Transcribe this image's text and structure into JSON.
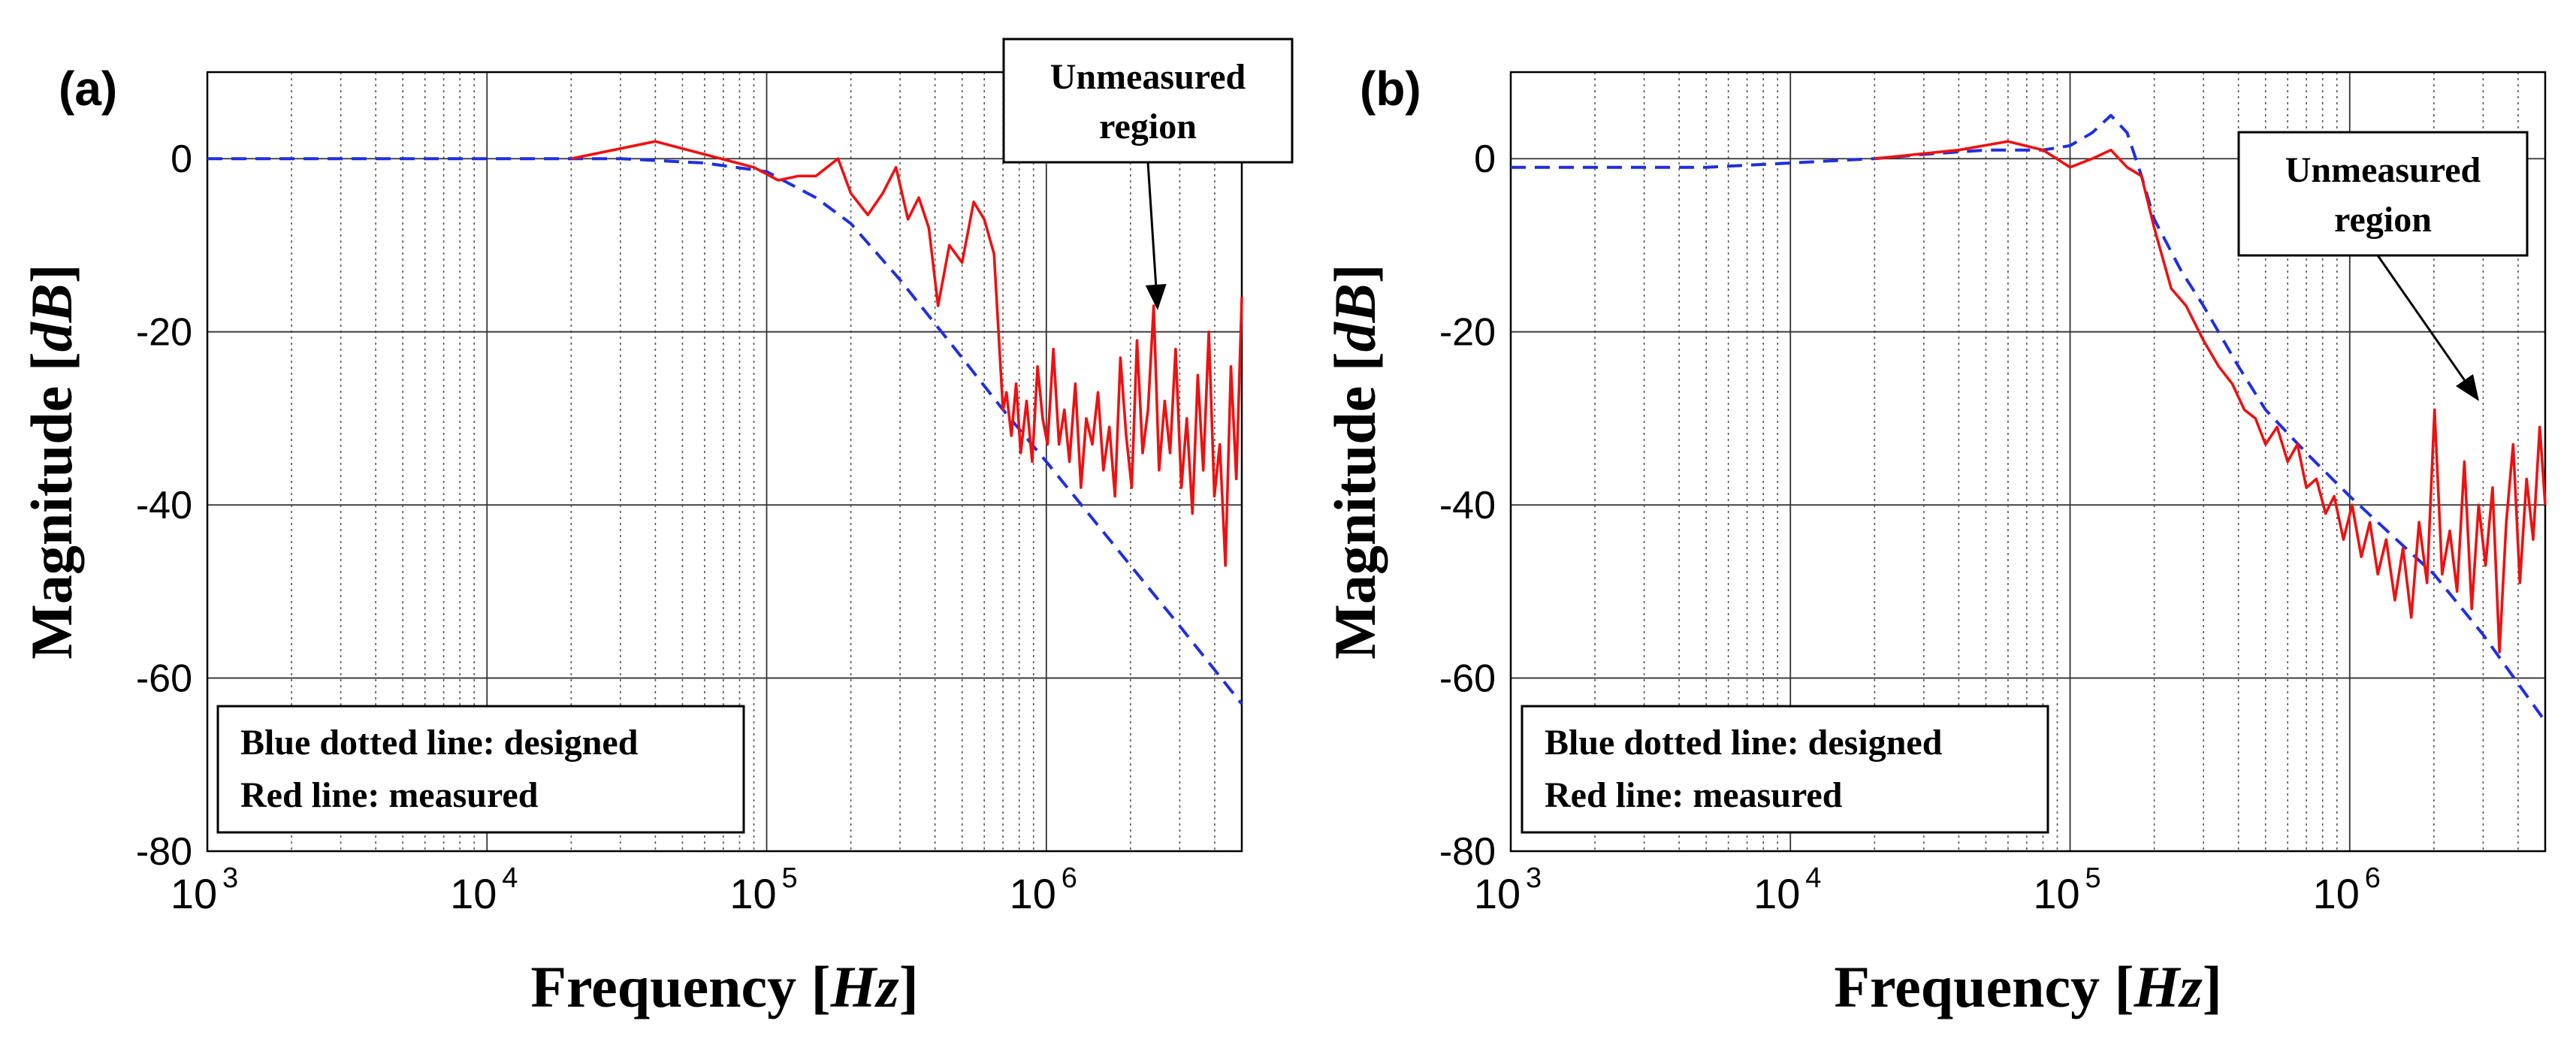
{
  "chart_data": [
    {
      "panel": "(a)",
      "type": "line",
      "xscale": "log",
      "xlim": [
        1000,
        5000000
      ],
      "ylim": [
        -80,
        10
      ],
      "yticks": [
        "0",
        "-20",
        "-40",
        "-60",
        "-80"
      ],
      "xticks": [
        {
          "base": "10",
          "exp": "3"
        },
        {
          "base": "10",
          "exp": "4"
        },
        {
          "base": "10",
          "exp": "5"
        },
        {
          "base": "10",
          "exp": "6"
        }
      ],
      "xlabel": "Frequency",
      "xunit": "Hz",
      "ylabel": "Magnitude",
      "yunit": "dB",
      "legend": [
        "Blue dotted line: designed",
        "Red line: measured"
      ],
      "annotation": [
        "Unmeasured",
        "region"
      ],
      "series": [
        {
          "name": "designed",
          "color": "#1f2fe0",
          "style": "dashed",
          "x": [
            1000,
            10000,
            30000,
            60000,
            100000,
            150000,
            200000,
            300000,
            500000,
            700000,
            1000000,
            2000000,
            3000000,
            5000000
          ],
          "y": [
            0,
            0,
            0,
            -0.5,
            -1.5,
            -4.5,
            -7.5,
            -14,
            -23,
            -29,
            -35,
            -47,
            -54,
            -63
          ]
        },
        {
          "name": "measured",
          "color": "#ee1111",
          "style": "solid",
          "x": [
            20000,
            40000,
            60000,
            90000,
            110000,
            130000,
            150000,
            180000,
            200000,
            230000,
            260000,
            290000,
            320000,
            350000,
            380000,
            410000,
            450000,
            500000,
            550000,
            600000,
            650000,
            700000,
            720000,
            750000,
            780000,
            810000,
            850000,
            890000,
            930000,
            970000,
            1010000,
            1060000,
            1110000,
            1160000,
            1210000,
            1270000,
            1330000,
            1390000,
            1460000,
            1530000,
            1600000,
            1680000,
            1760000,
            1840000,
            1930000,
            2020000,
            2110000,
            2210000,
            2310000,
            2420000,
            2530000,
            2650000,
            2770000,
            2900000,
            3040000,
            3180000,
            3330000,
            3480000,
            3640000,
            3810000,
            3990000,
            4170000,
            4370000,
            4570000,
            4780000,
            5000000
          ],
          "y": [
            0,
            2,
            0.5,
            -1,
            -2.5,
            -2,
            -2,
            0,
            -4,
            -6.5,
            -4,
            -1,
            -7,
            -4.5,
            -8,
            -17,
            -10,
            -12,
            -5,
            -7,
            -11,
            -29,
            -27,
            -32,
            -26,
            -34,
            -28,
            -35,
            -24,
            -30,
            -33,
            -22,
            -33,
            -29,
            -35,
            -26,
            -38,
            -30,
            -33,
            -27,
            -36,
            -31,
            -39,
            -23,
            -32,
            -38,
            -21,
            -34,
            -29,
            -17,
            -36,
            -28,
            -34,
            -22,
            -38,
            -30,
            -41,
            -25,
            -36,
            -20,
            -39,
            -33,
            -47,
            -24,
            -37,
            -16
          ]
        }
      ]
    },
    {
      "panel": "(b)",
      "type": "line",
      "xscale": "log",
      "xlim": [
        1000,
        5000000
      ],
      "ylim": [
        -80,
        10
      ],
      "yticks": [
        "0",
        "-20",
        "-40",
        "-60",
        "-80"
      ],
      "xticks": [
        {
          "base": "10",
          "exp": "3"
        },
        {
          "base": "10",
          "exp": "4"
        },
        {
          "base": "10",
          "exp": "5"
        },
        {
          "base": "10",
          "exp": "6"
        }
      ],
      "xlabel": "Frequency",
      "xunit": "Hz",
      "ylabel": "Magnitude",
      "yunit": "dB",
      "legend": [
        "Blue dotted line: designed",
        "Red line: measured"
      ],
      "annotation": [
        "Unmeasured",
        "region"
      ],
      "series": [
        {
          "name": "designed",
          "color": "#1f2fe0",
          "style": "dashed",
          "x": [
            1000,
            5000,
            10000,
            15000,
            20000,
            30000,
            50000,
            80000,
            100000,
            120000,
            140000,
            160000,
            180000,
            200000,
            250000,
            300000,
            400000,
            500000,
            700000,
            1000000,
            2000000,
            3000000,
            5000000
          ],
          "y": [
            -1,
            -1,
            -0.5,
            -0.2,
            0,
            0.5,
            1,
            1,
            1.5,
            3,
            5,
            3,
            -2,
            -7,
            -13,
            -17,
            -24,
            -29,
            -34,
            -39,
            -48,
            -55,
            -65
          ]
        },
        {
          "name": "measured",
          "color": "#ee1111",
          "style": "solid",
          "x": [
            20000,
            40000,
            60000,
            80000,
            100000,
            120000,
            140000,
            160000,
            180000,
            200000,
            230000,
            260000,
            300000,
            340000,
            380000,
            420000,
            460000,
            500000,
            550000,
            600000,
            650000,
            700000,
            760000,
            820000,
            880000,
            950000,
            1020000,
            1100000,
            1180000,
            1260000,
            1350000,
            1450000,
            1550000,
            1660000,
            1770000,
            1890000,
            2010000,
            2140000,
            2280000,
            2420000,
            2570000,
            2730000,
            2890000,
            3060000,
            3240000,
            3430000,
            3630000,
            3840000,
            4060000,
            4290000,
            4530000,
            4780000,
            5000000
          ],
          "y": [
            0,
            1,
            2,
            1,
            -1,
            0,
            1,
            -1,
            -2,
            -8,
            -15,
            -17,
            -21,
            -24,
            -26,
            -29,
            -30,
            -33,
            -31,
            -35,
            -33,
            -38,
            -37,
            -41,
            -39,
            -44,
            -40,
            -46,
            -42,
            -48,
            -44,
            -51,
            -45,
            -53,
            -42,
            -49,
            -29,
            -48,
            -43,
            -50,
            -35,
            -52,
            -40,
            -47,
            -38,
            -57,
            -42,
            -33,
            -49,
            -37,
            -44,
            -31,
            -40
          ]
        }
      ]
    }
  ]
}
